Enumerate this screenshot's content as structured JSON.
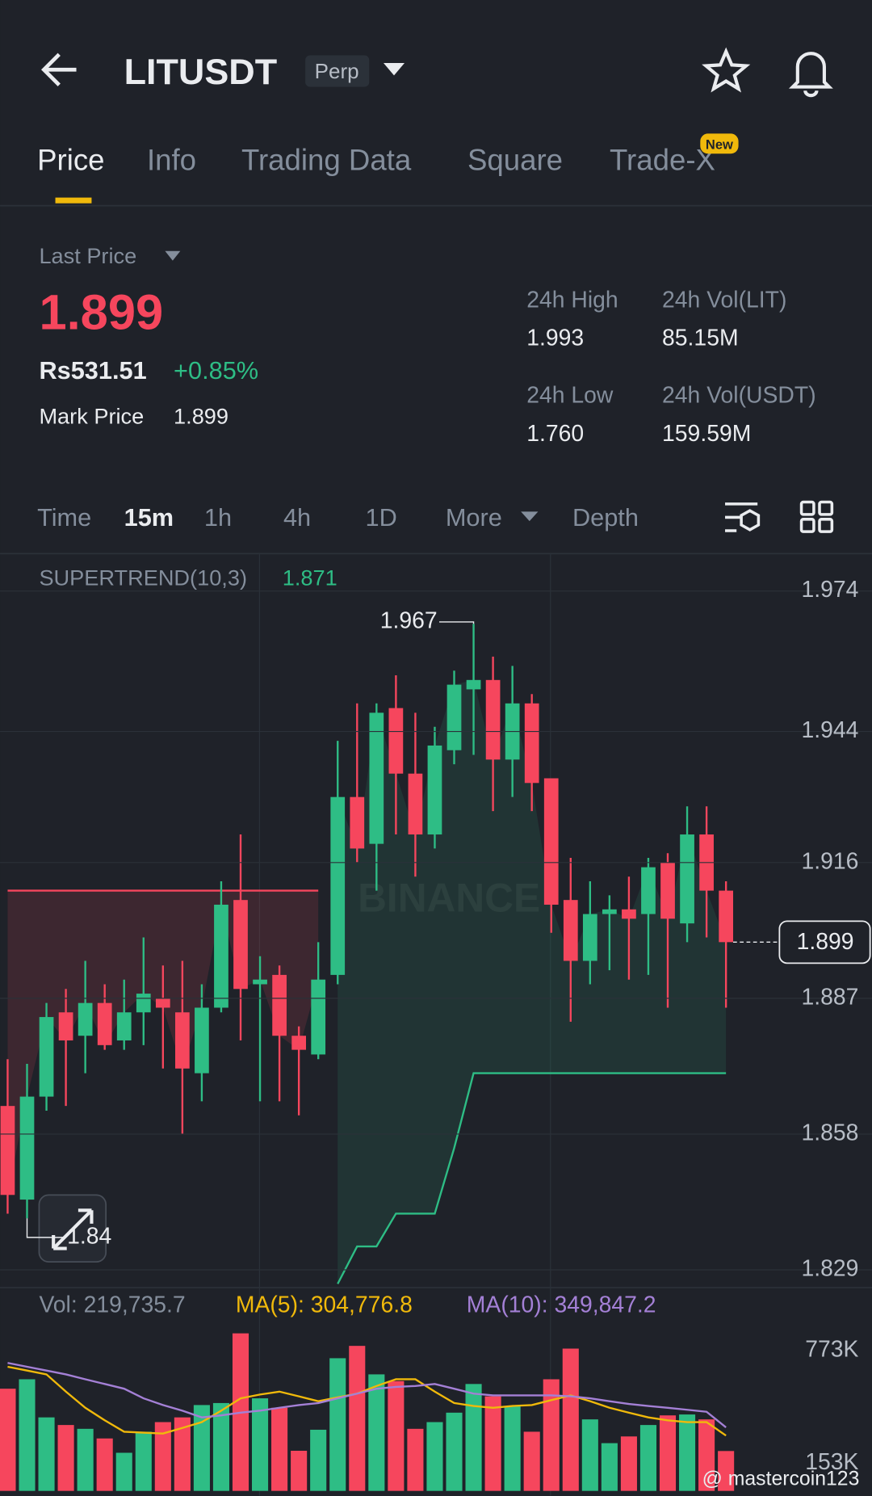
{
  "header": {
    "symbol": "LITUSDT",
    "contract": "Perp",
    "tabs": [
      "Price",
      "Info",
      "Trading Data",
      "Square",
      "Trade-X"
    ],
    "badge": "New"
  },
  "stats": {
    "last_price_label": "Last Price",
    "last_price": "1.899",
    "fiat": "Rs531.51",
    "change": "+0.85%",
    "mark_label": "Mark Price",
    "mark_price": "1.899",
    "high_label": "24h High",
    "high": "1.993",
    "low_label": "24h Low",
    "low": "1.760",
    "vol_lit_label": "24h Vol(LIT)",
    "vol_lit": "85.15M",
    "vol_usdt_label": "24h Vol(USDT)",
    "vol_usdt": "159.59M"
  },
  "intervals": [
    "Time",
    "15m",
    "1h",
    "4h",
    "1D",
    "More",
    "Depth"
  ],
  "indicators": {
    "supertrend_label": "SUPERTREND(10,3)",
    "supertrend_value": "1.871",
    "vol": "Vol: 219,735.7",
    "ma5": "MA(5): 304,776.8",
    "ma10": "MA(10): 349,847.2"
  },
  "watermark": "BINANCE",
  "credit": "@ mastercoin123",
  "chart_data": {
    "type": "candlestick",
    "open": [
      1.864,
      1.844,
      1.866,
      1.884,
      1.879,
      1.886,
      1.878,
      1.884,
      1.887,
      1.884,
      1.871,
      1.885,
      1.908,
      1.89,
      1.892,
      1.879,
      1.875,
      1.892,
      1.93,
      1.92,
      1.949,
      1.935,
      1.922,
      1.94,
      1.953,
      1.955,
      1.938,
      1.95,
      1.934,
      1.908,
      1.895,
      1.905,
      1.906,
      1.905,
      1.916,
      1.903,
      1.922,
      1.91
    ],
    "high": [
      1.874,
      1.873,
      1.886,
      1.889,
      1.895,
      1.89,
      1.891,
      1.9,
      1.894,
      1.895,
      1.89,
      1.912,
      1.922,
      1.896,
      1.894,
      1.881,
      1.899,
      1.942,
      1.95,
      1.95,
      1.956,
      1.948,
      1.945,
      1.957,
      1.967,
      1.96,
      1.958,
      1.952,
      1.934,
      1.917,
      1.912,
      1.909,
      1.913,
      1.917,
      1.918,
      1.928,
      1.928,
      1.912
    ],
    "low": [
      1.841,
      1.84,
      1.863,
      1.864,
      1.871,
      1.876,
      1.876,
      1.877,
      1.872,
      1.858,
      1.865,
      1.884,
      1.878,
      1.865,
      1.865,
      1.862,
      1.874,
      1.89,
      1.916,
      1.91,
      1.922,
      1.913,
      1.919,
      1.937,
      1.939,
      1.927,
      1.93,
      1.927,
      1.901,
      1.882,
      1.89,
      1.893,
      1.891,
      1.892,
      1.885,
      1.899,
      1.9,
      1.885
    ],
    "close": [
      1.845,
      1.866,
      1.883,
      1.878,
      1.886,
      1.877,
      1.884,
      1.888,
      1.885,
      1.872,
      1.885,
      1.907,
      1.889,
      1.891,
      1.879,
      1.876,
      1.891,
      1.93,
      1.919,
      1.948,
      1.935,
      1.922,
      1.941,
      1.954,
      1.955,
      1.938,
      1.95,
      1.933,
      1.907,
      1.895,
      1.905,
      1.906,
      1.904,
      1.915,
      1.904,
      1.922,
      1.91,
      1.899
    ],
    "supertrend_upper": [
      1.91,
      1.91,
      1.91,
      1.91,
      1.91,
      1.91,
      1.91,
      1.91,
      1.91,
      1.91,
      1.91,
      1.91,
      1.91,
      1.91,
      1.91,
      1.91,
      1.91,
      null,
      null,
      null,
      null,
      null,
      null,
      null,
      null,
      null,
      null,
      null,
      null,
      null,
      null,
      null,
      null,
      null,
      null,
      null,
      null,
      null
    ],
    "supertrend_lower": [
      null,
      null,
      null,
      null,
      null,
      null,
      null,
      null,
      null,
      null,
      null,
      null,
      null,
      null,
      null,
      null,
      null,
      1.826,
      1.834,
      1.834,
      1.841,
      1.841,
      1.841,
      1.855,
      1.871,
      1.871,
      1.871,
      1.871,
      1.871,
      1.871,
      1.871,
      1.871,
      1.871,
      1.871,
      1.871,
      1.871,
      1.871,
      1.871
    ],
    "current_price": 1.899,
    "high_index": 24,
    "low_index": 1,
    "ylim": [
      1.825,
      1.982
    ],
    "yticks": [
      1.974,
      1.944,
      1.916,
      1.887,
      1.858,
      1.829
    ],
    "up_color": "#2ebd85",
    "down_color": "#f6465d",
    "volume": {
      "values": [
        563000,
        615000,
        405000,
        363000,
        342000,
        289000,
        210000,
        326000,
        379000,
        405000,
        473000,
        484000,
        868000,
        510000,
        458000,
        221000,
        337000,
        731000,
        799000,
        642000,
        605000,
        342000,
        379000,
        431000,
        589000,
        521000,
        468000,
        326000,
        615000,
        784000,
        394000,
        263000,
        300000,
        363000,
        416000,
        421000,
        394000,
        219735.7
      ],
      "ma5": [
        684000,
        663000,
        642000,
        547000,
        458000,
        389000,
        326000,
        321000,
        316000,
        347000,
        379000,
        442000,
        510000,
        531000,
        547000,
        521000,
        494000,
        515000,
        536000,
        578000,
        615000,
        615000,
        547000,
        484000,
        468000,
        458000,
        468000,
        473000,
        500000,
        526000,
        494000,
        458000,
        431000,
        405000,
        389000,
        379000,
        379000,
        304776.8
      ],
      "ma10": [
        705000,
        684000,
        663000,
        642000,
        615000,
        589000,
        563000,
        510000,
        473000,
        442000,
        405000,
        416000,
        431000,
        442000,
        458000,
        473000,
        484000,
        510000,
        536000,
        563000,
        573000,
        578000,
        589000,
        563000,
        536000,
        526000,
        526000,
        526000,
        526000,
        521000,
        510000,
        494000,
        479000,
        468000,
        458000,
        447000,
        436000,
        349847.2
      ],
      "ma5_color": "#f0b90b",
      "ma10_color": "#a480d6",
      "ylim": [
        0,
        904500
      ],
      "yticks": [
        {
          "value": 773000,
          "label": "773K"
        },
        {
          "value": 153000,
          "label": "153K"
        }
      ]
    }
  }
}
